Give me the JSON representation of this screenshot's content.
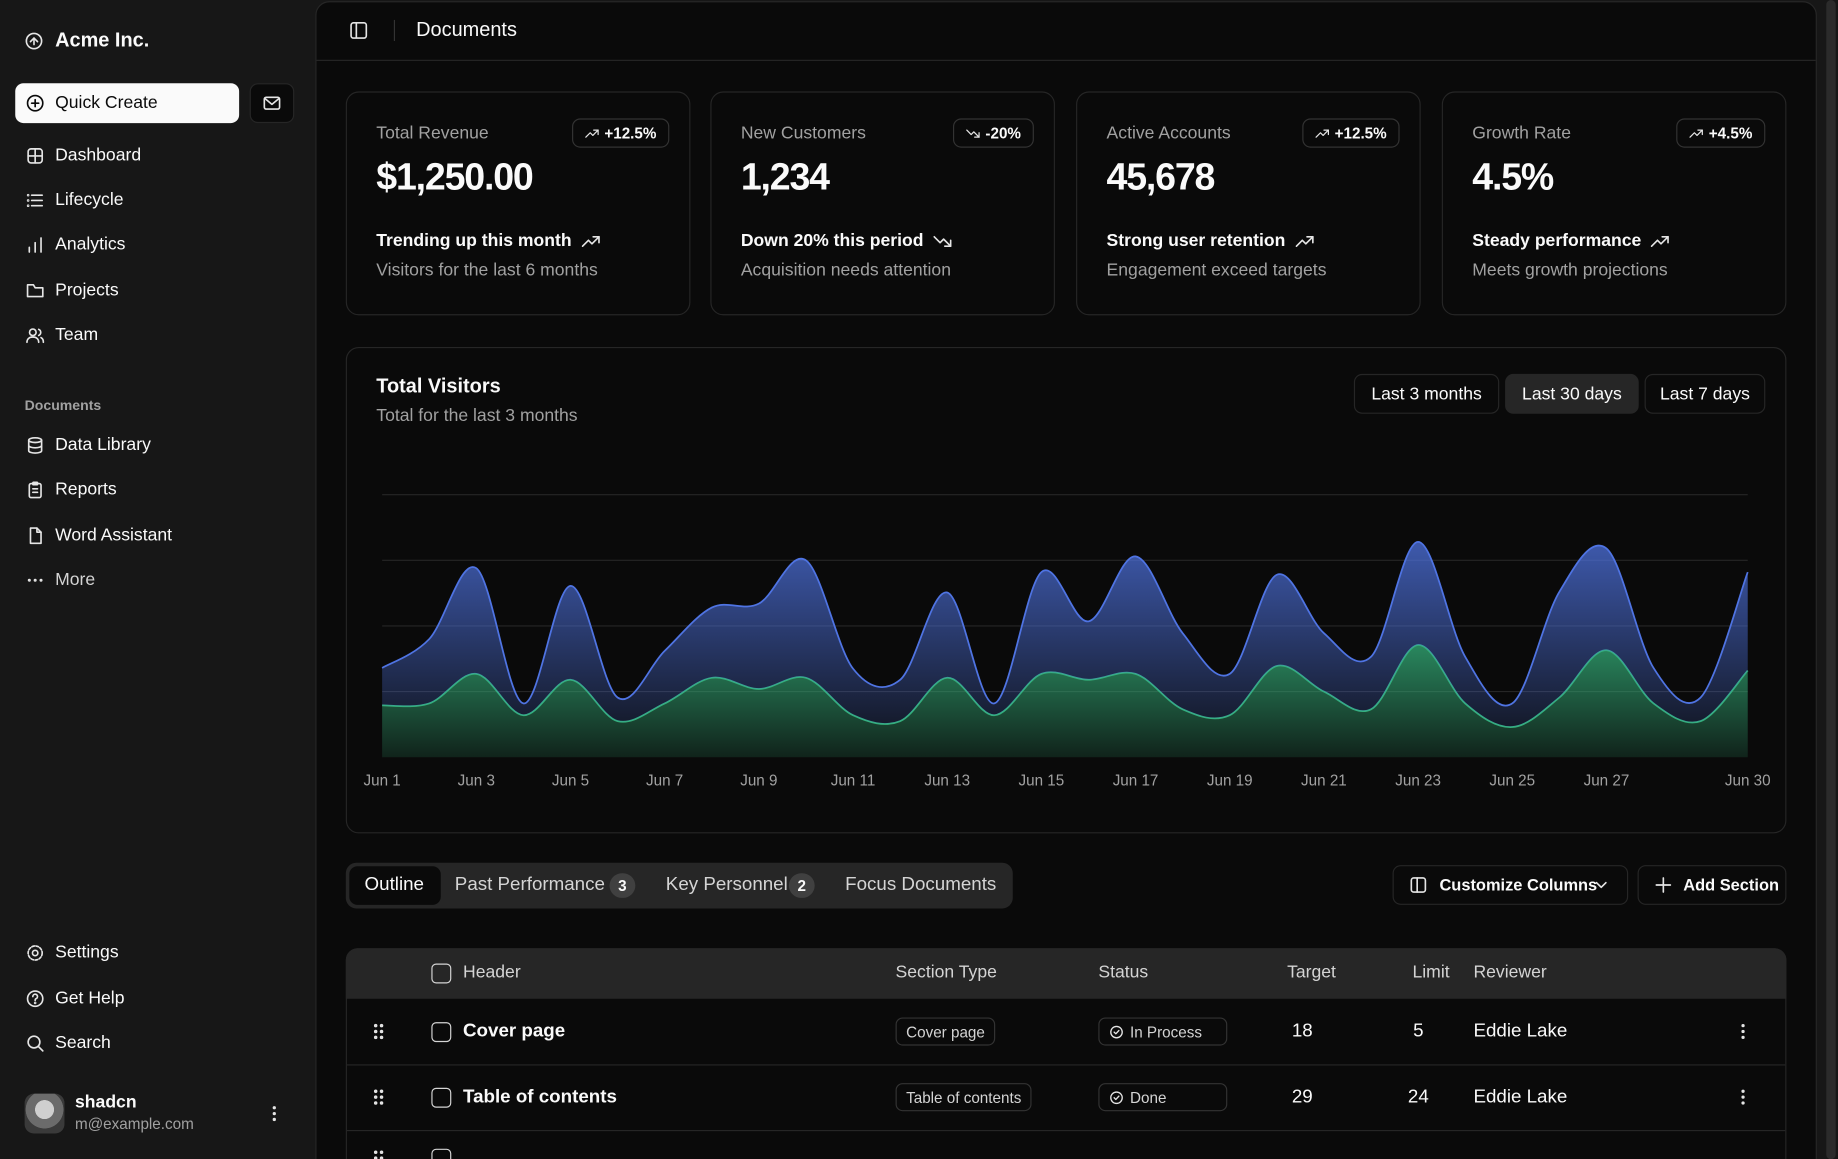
{
  "sidebar": {
    "brand": "Acme Inc.",
    "quick_create": "Quick Create",
    "nav": [
      "Dashboard",
      "Lifecycle",
      "Analytics",
      "Projects",
      "Team"
    ],
    "documents_label": "Documents",
    "documents": [
      "Data Library",
      "Reports",
      "Word Assistant",
      "More"
    ],
    "footer_nav": [
      "Settings",
      "Get Help",
      "Search"
    ],
    "user": {
      "name": "shadcn",
      "email": "m@example.com"
    }
  },
  "header": {
    "title": "Documents"
  },
  "cards": [
    {
      "label": "Total Revenue",
      "value": "$1,250.00",
      "badge": "+12.5%",
      "trend": "Trending up this month",
      "note": "Visitors for the last 6 months",
      "direction": "up"
    },
    {
      "label": "New Customers",
      "value": "1,234",
      "badge": "-20%",
      "trend": "Down 20% this period",
      "note": "Acquisition needs attention",
      "direction": "down"
    },
    {
      "label": "Active Accounts",
      "value": "45,678",
      "badge": "+12.5%",
      "trend": "Strong user retention",
      "note": "Engagement exceed targets",
      "direction": "up"
    },
    {
      "label": "Growth Rate",
      "value": "4.5%",
      "badge": "+4.5%",
      "trend": "Steady performance",
      "note": "Meets growth projections",
      "direction": "up"
    }
  ],
  "chart_data": {
    "type": "stacked-area",
    "title": "Total Visitors",
    "subtitle": "Total for the last 3 months",
    "ranges": [
      "Last 3 months",
      "Last 30 days",
      "Last 7 days"
    ],
    "active_range": 1,
    "categories": [
      "Jun 1",
      null,
      "Jun 3",
      null,
      "Jun 5",
      null,
      "Jun 7",
      null,
      "Jun 9",
      null,
      "Jun 11",
      null,
      "Jun 13",
      null,
      "Jun 15",
      null,
      "Jun 17",
      null,
      "Jun 19",
      null,
      "Jun 21",
      null,
      "Jun 23",
      null,
      "Jun 25",
      null,
      "Jun 27",
      null,
      null,
      "Jun 30"
    ],
    "series": [
      {
        "color": "#34b27b",
        "values": [
          79,
          82,
          127,
          64,
          118,
          55,
          82,
          121,
          104,
          121,
          64,
          55,
          121,
          64,
          127,
          118,
          127,
          73,
          64,
          139,
          100,
          73,
          171,
          82,
          46,
          91,
          163,
          82,
          55,
          132
        ]
      },
      {
        "color": "#4f74e3",
        "values": [
          57,
          98,
          161,
          18,
          143,
          36,
          80,
          107,
          130,
          179,
          71,
          63,
          130,
          18,
          155,
          89,
          179,
          116,
          63,
          139,
          89,
          80,
          157,
          71,
          36,
          161,
          155,
          54,
          36,
          150
        ]
      }
    ],
    "ylim": [
      0,
      400
    ],
    "grid": true
  },
  "tabs": {
    "items": [
      {
        "label": "Outline"
      },
      {
        "label": "Past Performance",
        "count": 3
      },
      {
        "label": "Key Personnel",
        "count": 2
      },
      {
        "label": "Focus Documents"
      }
    ],
    "active": 0,
    "customize": "Customize Columns",
    "add": "Add Section"
  },
  "table": {
    "columns": [
      "Header",
      "Section Type",
      "Status",
      "Target",
      "Limit",
      "Reviewer"
    ],
    "rows": [
      [
        "Cover page",
        "Cover page",
        "In Process",
        18,
        5,
        "Eddie Lake"
      ],
      [
        "Table of contents",
        "Table of contents",
        "Done",
        29,
        24,
        "Eddie Lake"
      ]
    ]
  }
}
